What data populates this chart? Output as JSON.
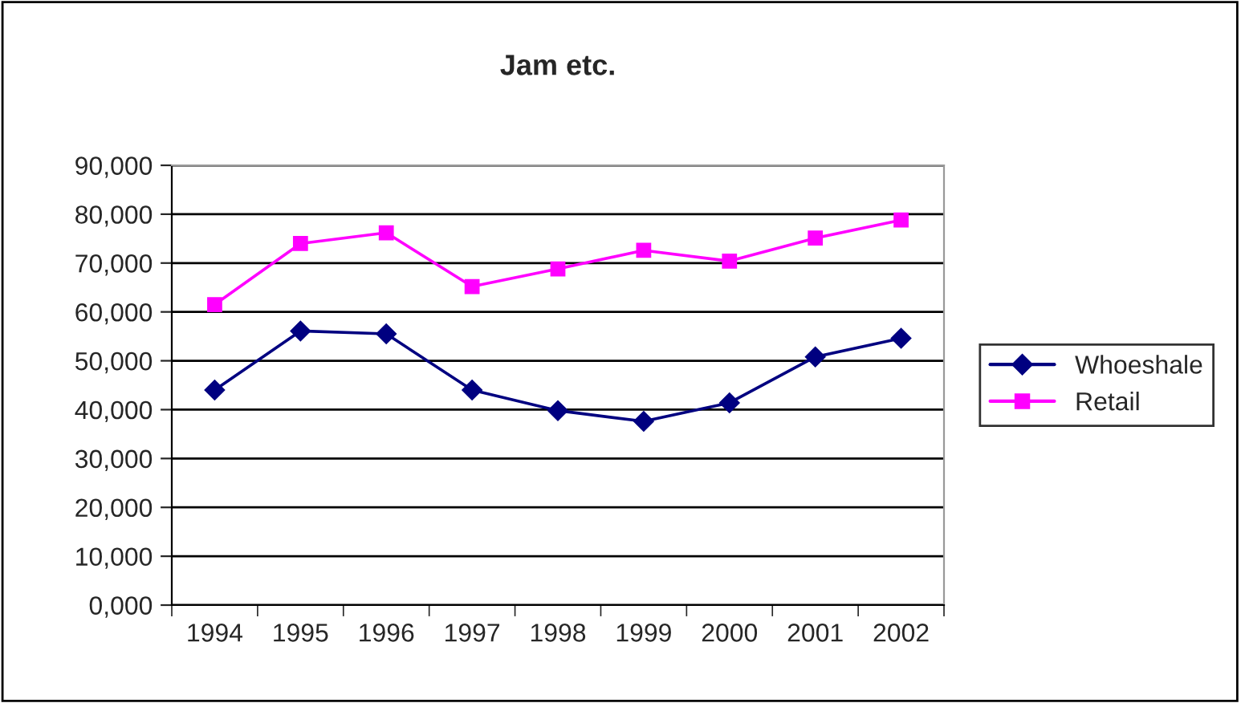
{
  "chart_data": {
    "type": "line",
    "title": "Jam etc.",
    "categories": [
      "1994",
      "1995",
      "1996",
      "1997",
      "1998",
      "1999",
      "2000",
      "2001",
      "2002"
    ],
    "series": [
      {
        "name": "Whoeshale",
        "color": "#000080",
        "marker": "diamond",
        "values": [
          44000,
          56100,
          55500,
          44000,
          39800,
          37600,
          41400,
          50800,
          54600
        ]
      },
      {
        "name": "Retail",
        "color": "#ff00ff",
        "marker": "square",
        "values": [
          61500,
          74000,
          76200,
          65200,
          68800,
          72600,
          70400,
          75100,
          78800
        ]
      }
    ],
    "ylim": [
      0,
      90000
    ],
    "yticks": [
      {
        "value": 0,
        "label": "0,000"
      },
      {
        "value": 10000,
        "label": "10,000"
      },
      {
        "value": 20000,
        "label": "20,000"
      },
      {
        "value": 30000,
        "label": "30,000"
      },
      {
        "value": 40000,
        "label": "40,000"
      },
      {
        "value": 50000,
        "label": "50,000"
      },
      {
        "value": 60000,
        "label": "60,000"
      },
      {
        "value": 70000,
        "label": "70,000"
      },
      {
        "value": 80000,
        "label": "80,000"
      },
      {
        "value": 90000,
        "label": "90,000"
      }
    ],
    "grid": "y",
    "legend": "right",
    "line_style": "solid"
  }
}
